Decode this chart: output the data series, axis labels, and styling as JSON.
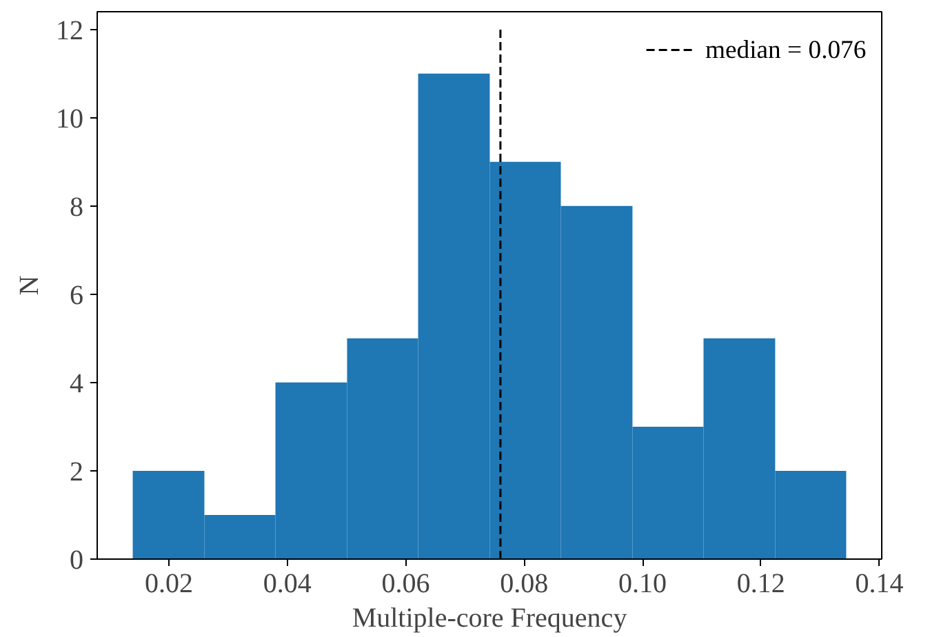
{
  "chart_data": {
    "type": "histogram",
    "xlabel": "Multiple-core Frequency",
    "ylabel": "N",
    "bins": [
      0.0139,
      0.026,
      0.038,
      0.0501,
      0.0621,
      0.0742,
      0.0862,
      0.0983,
      0.1103,
      0.1224,
      0.1344
    ],
    "values": [
      2,
      1,
      4,
      5,
      11,
      9,
      8,
      3,
      5,
      2
    ],
    "color": "#1f77b4",
    "xlim": [
      0.0079,
      0.1404
    ],
    "ylim": [
      0,
      12.4
    ],
    "xticks": [
      {
        "value": 0.02,
        "label": "0.02"
      },
      {
        "value": 0.04,
        "label": "0.04"
      },
      {
        "value": 0.06,
        "label": "0.06"
      },
      {
        "value": 0.08,
        "label": "0.08"
      },
      {
        "value": 0.1,
        "label": "0.10"
      },
      {
        "value": 0.12,
        "label": "0.12"
      },
      {
        "value": 0.14,
        "label": "0.14"
      }
    ],
    "yticks": [
      0,
      2,
      4,
      6,
      8,
      10,
      12
    ],
    "ref_lines": [
      {
        "axis": "x",
        "value": 0.076,
        "label": "median = 0.076",
        "color": "#000000",
        "line_style": "dashed"
      }
    ],
    "grid": false,
    "legend": "top right"
  }
}
